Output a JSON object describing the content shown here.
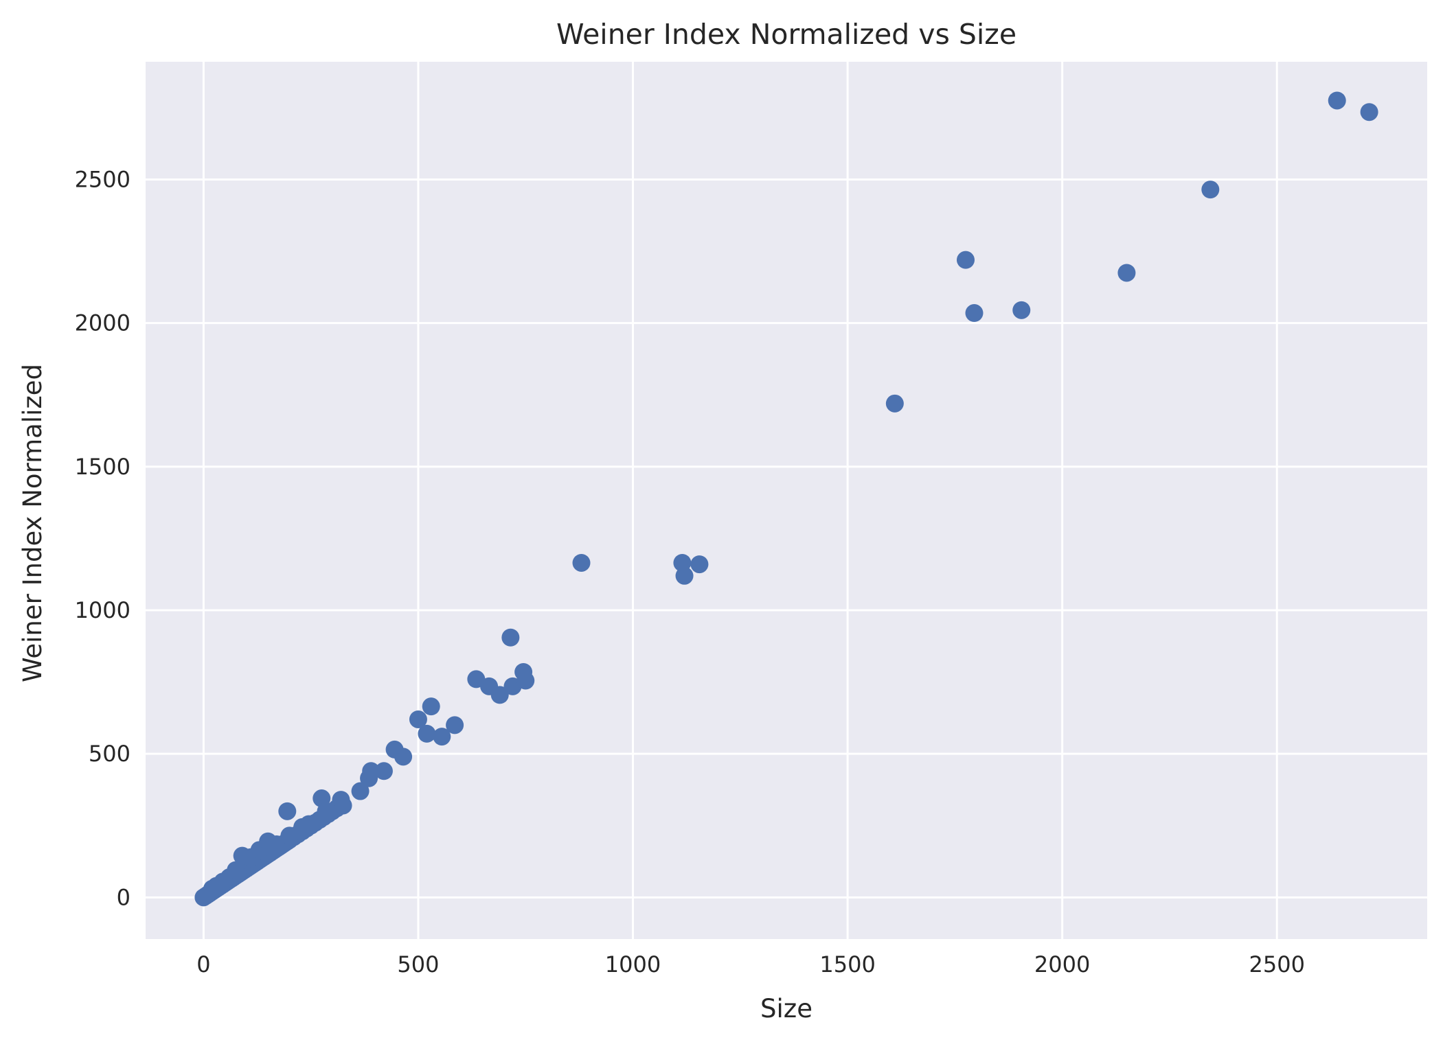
{
  "chart_data": {
    "type": "scatter",
    "title": "Weiner Index Normalized vs Size",
    "xlabel": "Size",
    "ylabel": "Weiner Index Normalized",
    "xlim": [
      -135,
      2850
    ],
    "ylim": [
      -145,
      2910
    ],
    "xticks": [
      0,
      500,
      1000,
      1500,
      2000,
      2500
    ],
    "yticks": [
      0,
      500,
      1000,
      1500,
      2000,
      2500
    ],
    "xtick_labels": [
      "0",
      "500",
      "1000",
      "1500",
      "2000",
      "2500"
    ],
    "ytick_labels": [
      "0",
      "500",
      "1000",
      "1500",
      "2000",
      "2500"
    ],
    "grid": true,
    "style": {
      "background": "#eaeaf2",
      "grid_color": "#ffffff",
      "marker_color": "#4c72b0"
    },
    "series": [
      {
        "x": [
          0,
          5,
          10,
          15,
          20,
          25,
          30,
          35,
          40,
          45,
          50,
          55,
          60,
          65,
          70,
          75,
          80,
          85,
          90,
          95,
          100,
          105,
          110,
          115,
          120,
          125,
          130,
          135,
          140,
          145,
          150,
          155,
          160,
          165,
          170,
          175,
          180,
          185,
          190,
          195,
          200,
          210,
          220,
          230,
          240,
          250,
          260,
          270,
          280,
          290,
          300,
          310,
          320,
          20,
          30,
          45,
          60,
          75,
          90,
          110,
          130,
          150,
          170,
          195,
          200,
          230,
          245,
          275,
          285,
          320,
          325,
          365,
          385,
          390,
          420,
          445,
          465,
          500,
          520,
          530,
          555,
          585,
          635,
          665,
          690,
          715,
          720,
          745,
          750,
          880,
          1115,
          1120,
          1155,
          1610,
          1775,
          1795,
          1905,
          2150,
          2345,
          2640,
          2715
        ],
        "y": [
          0,
          5,
          10,
          15,
          20,
          25,
          30,
          35,
          40,
          45,
          50,
          55,
          60,
          65,
          70,
          75,
          80,
          85,
          90,
          95,
          100,
          105,
          110,
          115,
          120,
          125,
          130,
          135,
          140,
          145,
          150,
          155,
          160,
          165,
          170,
          175,
          180,
          185,
          190,
          195,
          200,
          210,
          220,
          230,
          240,
          250,
          260,
          270,
          280,
          290,
          300,
          310,
          320,
          30,
          40,
          55,
          70,
          95,
          145,
          140,
          165,
          195,
          185,
          300,
          215,
          245,
          255,
          345,
          300,
          340,
          320,
          370,
          415,
          440,
          440,
          515,
          490,
          620,
          570,
          665,
          560,
          600,
          760,
          735,
          705,
          905,
          735,
          785,
          755,
          1165,
          1165,
          1120,
          1160,
          1720,
          2220,
          2035,
          2045,
          2175,
          2465,
          2775,
          2735
        ]
      }
    ]
  }
}
